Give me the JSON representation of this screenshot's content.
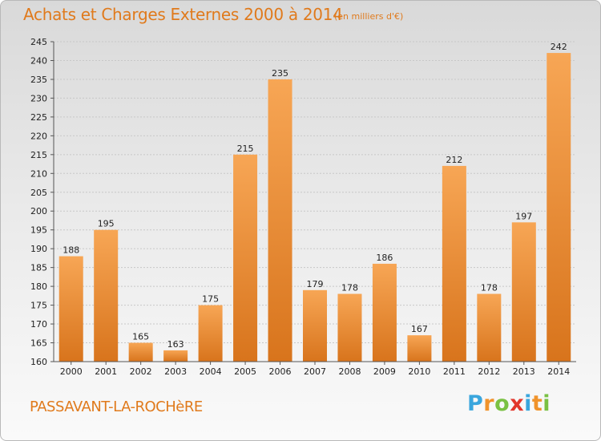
{
  "title": "Achats et Charges Externes 2000 à 2014",
  "subtitle": "(en milliers d'€)",
  "commune": "PASSAVANT-LA-ROCHèRE",
  "logo": {
    "letters": [
      "P",
      "r",
      "o",
      "x",
      "i",
      "t",
      "i"
    ],
    "colors": [
      "#3aa6dd",
      "#f0932b",
      "#7ac143",
      "#e2362b",
      "#3aa6dd",
      "#f0932b",
      "#7ac143"
    ]
  },
  "colors": {
    "bar_top": "#f7a655",
    "bar_bottom": "#d8741c",
    "title": "#e07a1c"
  },
  "chart_data": {
    "type": "bar",
    "categories": [
      "2000",
      "2001",
      "2002",
      "2003",
      "2004",
      "2005",
      "2006",
      "2007",
      "2008",
      "2009",
      "2010",
      "2011",
      "2012",
      "2013",
      "2014"
    ],
    "values": [
      188,
      195,
      165,
      163,
      175,
      215,
      235,
      179,
      178,
      186,
      167,
      212,
      178,
      197,
      242
    ],
    "ylim": [
      160,
      245
    ],
    "yticks": [
      "160",
      "165",
      "170",
      "175",
      "180",
      "185",
      "190",
      "195",
      "200",
      "205",
      "210",
      "215",
      "220",
      "225",
      "230",
      "235",
      "240",
      "245"
    ],
    "grid": true,
    "legend": "none"
  }
}
